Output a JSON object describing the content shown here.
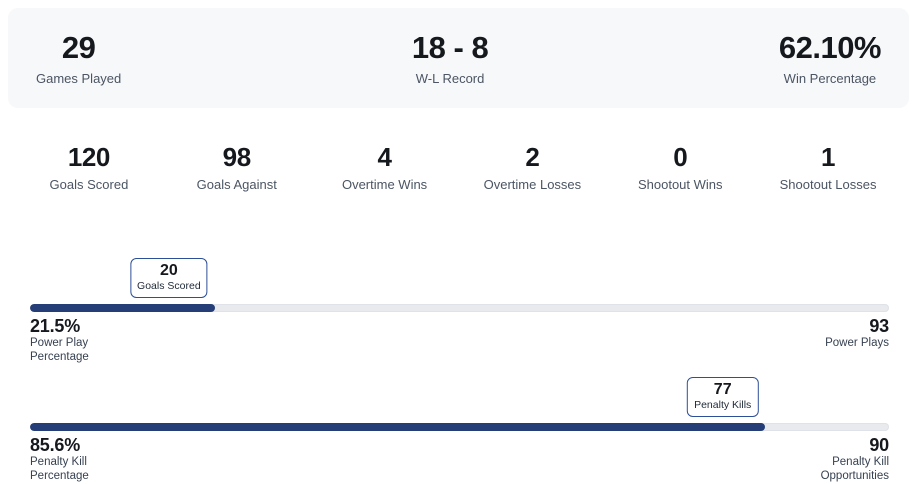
{
  "colors": {
    "panel_bg": "#f7f8fa",
    "bar_fill": "#253e78",
    "bar_track": "#e8eaee",
    "box_border": "#2d4f97",
    "number_text": "#15181d",
    "label_text": "#4b5563"
  },
  "top_stats": [
    {
      "value": "29",
      "label": "Games Played"
    },
    {
      "value": "18 - 8",
      "label": "W-L Record"
    },
    {
      "value": "62.10%",
      "label": "Win Percentage"
    }
  ],
  "mid_stats": [
    {
      "value": "120",
      "label": "Goals Scored"
    },
    {
      "value": "98",
      "label": "Goals Against"
    },
    {
      "value": "4",
      "label": "Overtime Wins"
    },
    {
      "value": "2",
      "label": "Overtime Losses"
    },
    {
      "value": "0",
      "label": "Shootout Wins"
    },
    {
      "value": "1",
      "label": "Shootout Losses"
    }
  ],
  "progress_sections": [
    {
      "percent": 21.5,
      "marker": {
        "value": "20",
        "label": "Goals Scored"
      },
      "left": {
        "value": "21.5%",
        "line1": "Power Play",
        "line2": "Percentage"
      },
      "right": {
        "value": "93",
        "line1": "Power Plays",
        "line2": ""
      }
    },
    {
      "percent": 85.6,
      "marker": {
        "value": "77",
        "label": "Penalty Kills"
      },
      "left": {
        "value": "85.6%",
        "line1": "Penalty Kill",
        "line2": "Percentage"
      },
      "right": {
        "value": "90",
        "line1": "Penalty Kill",
        "line2": "Opportunities"
      }
    }
  ]
}
